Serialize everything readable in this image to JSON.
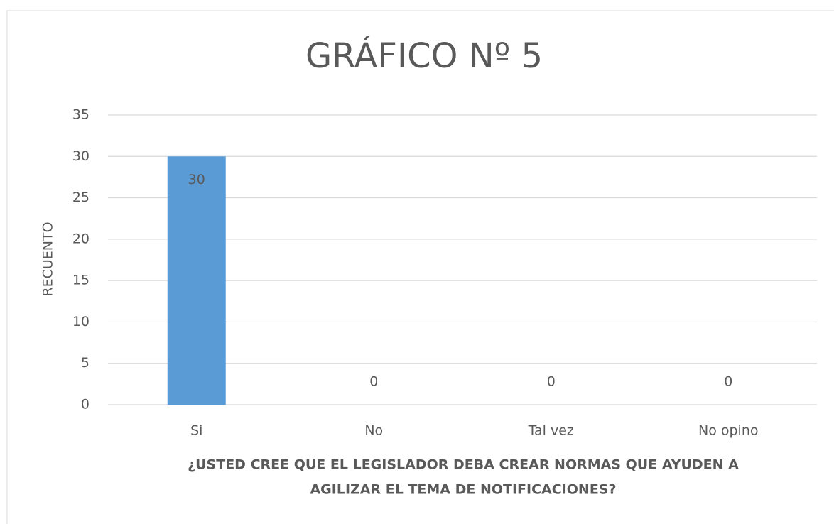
{
  "chart_data": {
    "type": "bar",
    "title": "GRÁFICO Nº 5",
    "categories": [
      "Si",
      "No",
      "Tal vez",
      "No opino"
    ],
    "values": [
      30,
      0,
      0,
      0
    ],
    "color": "#5b9bd5",
    "ylim": [
      0,
      35
    ],
    "yticks": [
      0,
      5,
      10,
      15,
      20,
      25,
      30,
      35
    ],
    "grid": true,
    "y_label": "RECUENTO",
    "x_label": [
      "¿USTED CREE QUE EL LEGISLADOR DEBA CREAR NORMAS QUE AYUDEN A",
      "AGILIZAR EL TEMA DE NOTIFICACIONES?"
    ]
  }
}
